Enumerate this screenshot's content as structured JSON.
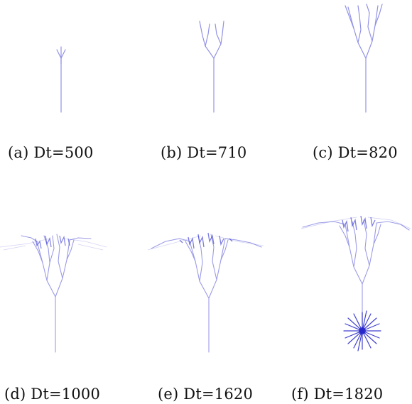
{
  "figure": {
    "stroke_color": "#3a3ad0",
    "panels": [
      {
        "id": "a",
        "caption": "(a) Dt=500"
      },
      {
        "id": "b",
        "caption": "(b) Dt=710"
      },
      {
        "id": "c",
        "caption": "(c) Dt=820"
      },
      {
        "id": "d",
        "caption": "(d) Dt=1000"
      },
      {
        "id": "e",
        "caption": "(e) Dt=1620"
      },
      {
        "id": "f",
        "caption": "(f) Dt=1820"
      }
    ]
  }
}
